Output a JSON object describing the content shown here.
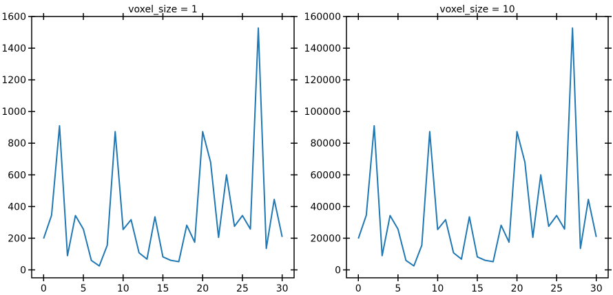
{
  "chart_data": [
    {
      "type": "line",
      "title": "voxel_size = 1",
      "xlabel": "",
      "ylabel": "",
      "xlim": [
        -1.5,
        31.5
      ],
      "ylim": [
        -50,
        1600
      ],
      "xticks": [
        0,
        5,
        10,
        15,
        20,
        25,
        30
      ],
      "yticks": [
        0,
        200,
        400,
        600,
        800,
        1000,
        1200,
        1400,
        1600
      ],
      "grid": false,
      "color": "#1f77b4",
      "x": [
        0,
        1,
        2,
        3,
        4,
        5,
        6,
        7,
        8,
        9,
        10,
        11,
        12,
        13,
        14,
        15,
        16,
        17,
        18,
        19,
        20,
        21,
        22,
        23,
        24,
        25,
        26,
        27,
        28,
        29,
        30
      ],
      "values": [
        198,
        345,
        910,
        90,
        343,
        257,
        60,
        25,
        155,
        873,
        255,
        317,
        108,
        68,
        335,
        82,
        60,
        52,
        282,
        175,
        873,
        680,
        205,
        600,
        275,
        343,
        258,
        1527,
        135,
        445,
        208
      ]
    },
    {
      "type": "line",
      "title": "voxel_size = 10",
      "xlabel": "",
      "ylabel": "",
      "xlim": [
        -1.5,
        31.5
      ],
      "ylim": [
        -5000,
        160000
      ],
      "xticks": [
        0,
        5,
        10,
        15,
        20,
        25,
        30
      ],
      "yticks": [
        0,
        20000,
        40000,
        60000,
        80000,
        100000,
        120000,
        140000,
        160000
      ],
      "grid": false,
      "color": "#1f77b4",
      "x": [
        0,
        1,
        2,
        3,
        4,
        5,
        6,
        7,
        8,
        9,
        10,
        11,
        12,
        13,
        14,
        15,
        16,
        17,
        18,
        19,
        20,
        21,
        22,
        23,
        24,
        25,
        26,
        27,
        28,
        29,
        30
      ],
      "values": [
        19800,
        34500,
        91000,
        9000,
        34300,
        25700,
        6000,
        2500,
        15500,
        87300,
        25500,
        31700,
        10800,
        6800,
        33500,
        8200,
        6000,
        5200,
        28200,
        17500,
        87300,
        68000,
        20500,
        60000,
        27500,
        34300,
        25800,
        152700,
        13500,
        44500,
        20800
      ]
    }
  ]
}
